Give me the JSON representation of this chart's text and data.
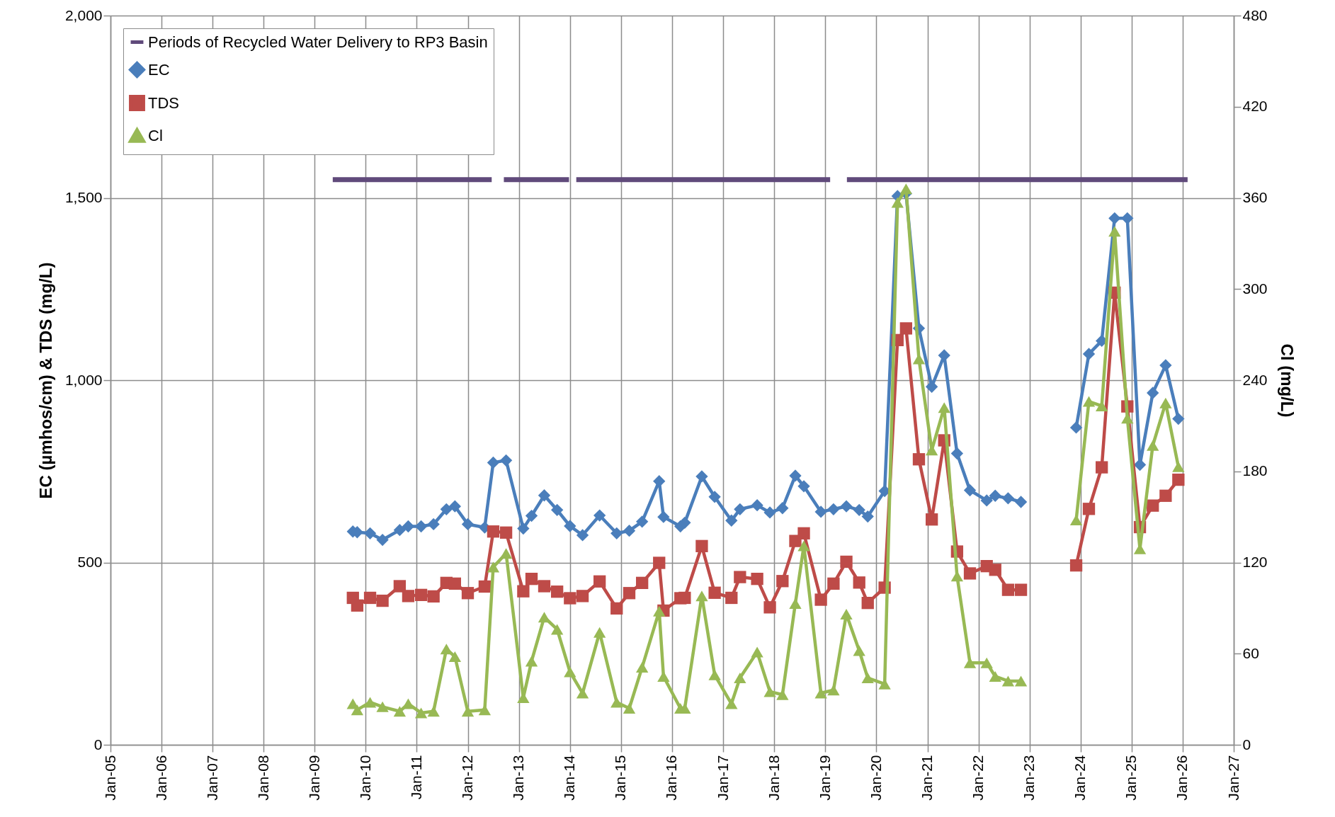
{
  "chart_data": {
    "type": "line",
    "ylabel": "EC (µmhos/cm) & TDS (mg/L)",
    "y2label": "Cl (mg/L)",
    "x": [
      "2009-10",
      "2009-11",
      "2010-02",
      "2010-05",
      "2010-09",
      "2010-11",
      "2011-02",
      "2011-05",
      "2011-08",
      "2011-10",
      "2012-01",
      "2012-05",
      "2012-07",
      "2012-10",
      "2013-02",
      "2013-04",
      "2013-07",
      "2013-10",
      "2014-01",
      "2014-04",
      "2014-08",
      "2014-12",
      "2015-03",
      "2015-06",
      "2015-10",
      "2015-11",
      "2016-03",
      "2016-04",
      "2016-08",
      "2016-11",
      "2017-03",
      "2017-05",
      "2017-09",
      "2017-12",
      "2018-03",
      "2018-06",
      "2018-08",
      "2018-12",
      "2019-03",
      "2019-06",
      "2019-09",
      "2019-11",
      "2020-03",
      "2020-06",
      "2020-08",
      "2020-11",
      "2021-02",
      "2021-05",
      "2021-08",
      "2021-11",
      "2022-03",
      "2022-05",
      "2022-08",
      "2022-11",
      "2023-06",
      "2023-12",
      "2024-03",
      "2024-06",
      "2024-09",
      "2024-12",
      "2025-03",
      "2025-06",
      "2025-09",
      "2025-12"
    ],
    "series": [
      {
        "name": "Periods of Recycled Water Delivery to RP3 Basin",
        "color": "#604a7b",
        "marker": "none",
        "x": [
          "2009-05-10",
          "2012-06-20",
          "2012-08-01",
          "2012-09-15",
          "2013-12-25",
          "2014-01-20",
          "2014-02-15",
          "2019-02-05",
          "2019-04-01",
          "2019-06-05",
          "2026-02-05"
        ],
        "values": [
          1550,
          1550,
          null,
          1550,
          1550,
          null,
          1550,
          1550,
          null,
          1550,
          1550
        ]
      },
      {
        "name": "EC",
        "color": "#4a7ebb",
        "marker": "diamond",
        "values": [
          585,
          583,
          580,
          562,
          589,
          599,
          599,
          605,
          646,
          654,
          605,
          596,
          774,
          780,
          593,
          628,
          684,
          644,
          600,
          575,
          629,
          580,
          587,
          612,
          723,
          625,
          599,
          609,
          736,
          680,
          615,
          646,
          657,
          637,
          649,
          738,
          709,
          639,
          646,
          654,
          644,
          626,
          696,
          1505,
          1512,
          1142,
          982,
          1068,
          799,
          698,
          670,
          683,
          676,
          666,
          null,
          870,
          1072,
          1108,
          1444,
          1444,
          768,
          965,
          1041,
          894
        ]
      },
      {
        "name": "TDS",
        "color": "#be4b48",
        "marker": "square",
        "values": [
          403,
          382,
          403,
          395,
          435,
          408,
          411,
          407,
          444,
          442,
          416,
          434,
          585,
          582,
          421,
          455,
          435,
          420,
          402,
          408,
          448,
          374,
          416,
          444,
          499,
          368,
          402,
          403,
          545,
          417,
          403,
          460,
          455,
          377,
          449,
          559,
          580,
          398,
          442,
          502,
          445,
          389,
          431,
          1110,
          1142,
          783,
          618,
          835,
          530,
          470,
          490,
          480,
          425,
          425,
          null,
          492,
          647,
          761,
          1240,
          928,
          597,
          656,
          683,
          727
        ]
      },
      {
        "name": "Cl",
        "color": "#98b954",
        "marker": "triangle",
        "axis": "y2",
        "values": [
          27,
          23,
          28,
          25,
          22,
          27,
          21,
          22,
          63,
          58,
          22,
          23,
          117,
          126,
          31,
          55,
          84,
          76,
          48,
          34,
          74,
          28,
          24,
          51,
          88,
          45,
          24,
          24,
          98,
          46,
          27,
          44,
          61,
          35,
          33,
          93,
          131,
          34,
          36,
          86,
          62,
          44,
          40,
          357,
          366,
          254,
          194,
          222,
          111,
          54,
          54,
          45,
          42,
          42,
          null,
          148,
          226,
          223,
          338,
          215,
          129,
          197,
          225,
          183
        ]
      }
    ],
    "xlim": [
      "2005-01",
      "2027-01"
    ],
    "xticks": [
      {
        "value": "2005-01",
        "label": "Jan-05"
      },
      {
        "value": "2006-01",
        "label": "Jan-06"
      },
      {
        "value": "2007-01",
        "label": "Jan-07"
      },
      {
        "value": "2008-01",
        "label": "Jan-08"
      },
      {
        "value": "2009-01",
        "label": "Jan-09"
      },
      {
        "value": "2010-01",
        "label": "Jan-10"
      },
      {
        "value": "2011-01",
        "label": "Jan-11"
      },
      {
        "value": "2012-01",
        "label": "Jan-12"
      },
      {
        "value": "2013-01",
        "label": "Jan-13"
      },
      {
        "value": "2014-01",
        "label": "Jan-14"
      },
      {
        "value": "2015-01",
        "label": "Jan-15"
      },
      {
        "value": "2016-01",
        "label": "Jan-16"
      },
      {
        "value": "2017-01",
        "label": "Jan-17"
      },
      {
        "value": "2018-01",
        "label": "Jan-18"
      },
      {
        "value": "2019-01",
        "label": "Jan-19"
      },
      {
        "value": "2020-01",
        "label": "Jan-20"
      },
      {
        "value": "2021-01",
        "label": "Jan-21"
      },
      {
        "value": "2022-01",
        "label": "Jan-22"
      },
      {
        "value": "2023-01",
        "label": "Jan-23"
      },
      {
        "value": "2024-01",
        "label": "Jan-24"
      },
      {
        "value": "2025-01",
        "label": "Jan-25"
      },
      {
        "value": "2026-01",
        "label": "Jan-26"
      },
      {
        "value": "2027-01",
        "label": "Jan-27"
      }
    ],
    "ylim": [
      0,
      2000
    ],
    "yticks": [
      0,
      500,
      {
        "value": 1000,
        "label": "1,000"
      },
      {
        "value": 1500,
        "label": "1,500"
      },
      {
        "value": 2000,
        "label": "2,000"
      }
    ],
    "y2lim": [
      0,
      480
    ],
    "y2ticks": [
      0,
      60,
      120,
      180,
      240,
      300,
      360,
      420,
      480
    ],
    "grid": true,
    "legend": "top left",
    "line_style": "solid"
  }
}
